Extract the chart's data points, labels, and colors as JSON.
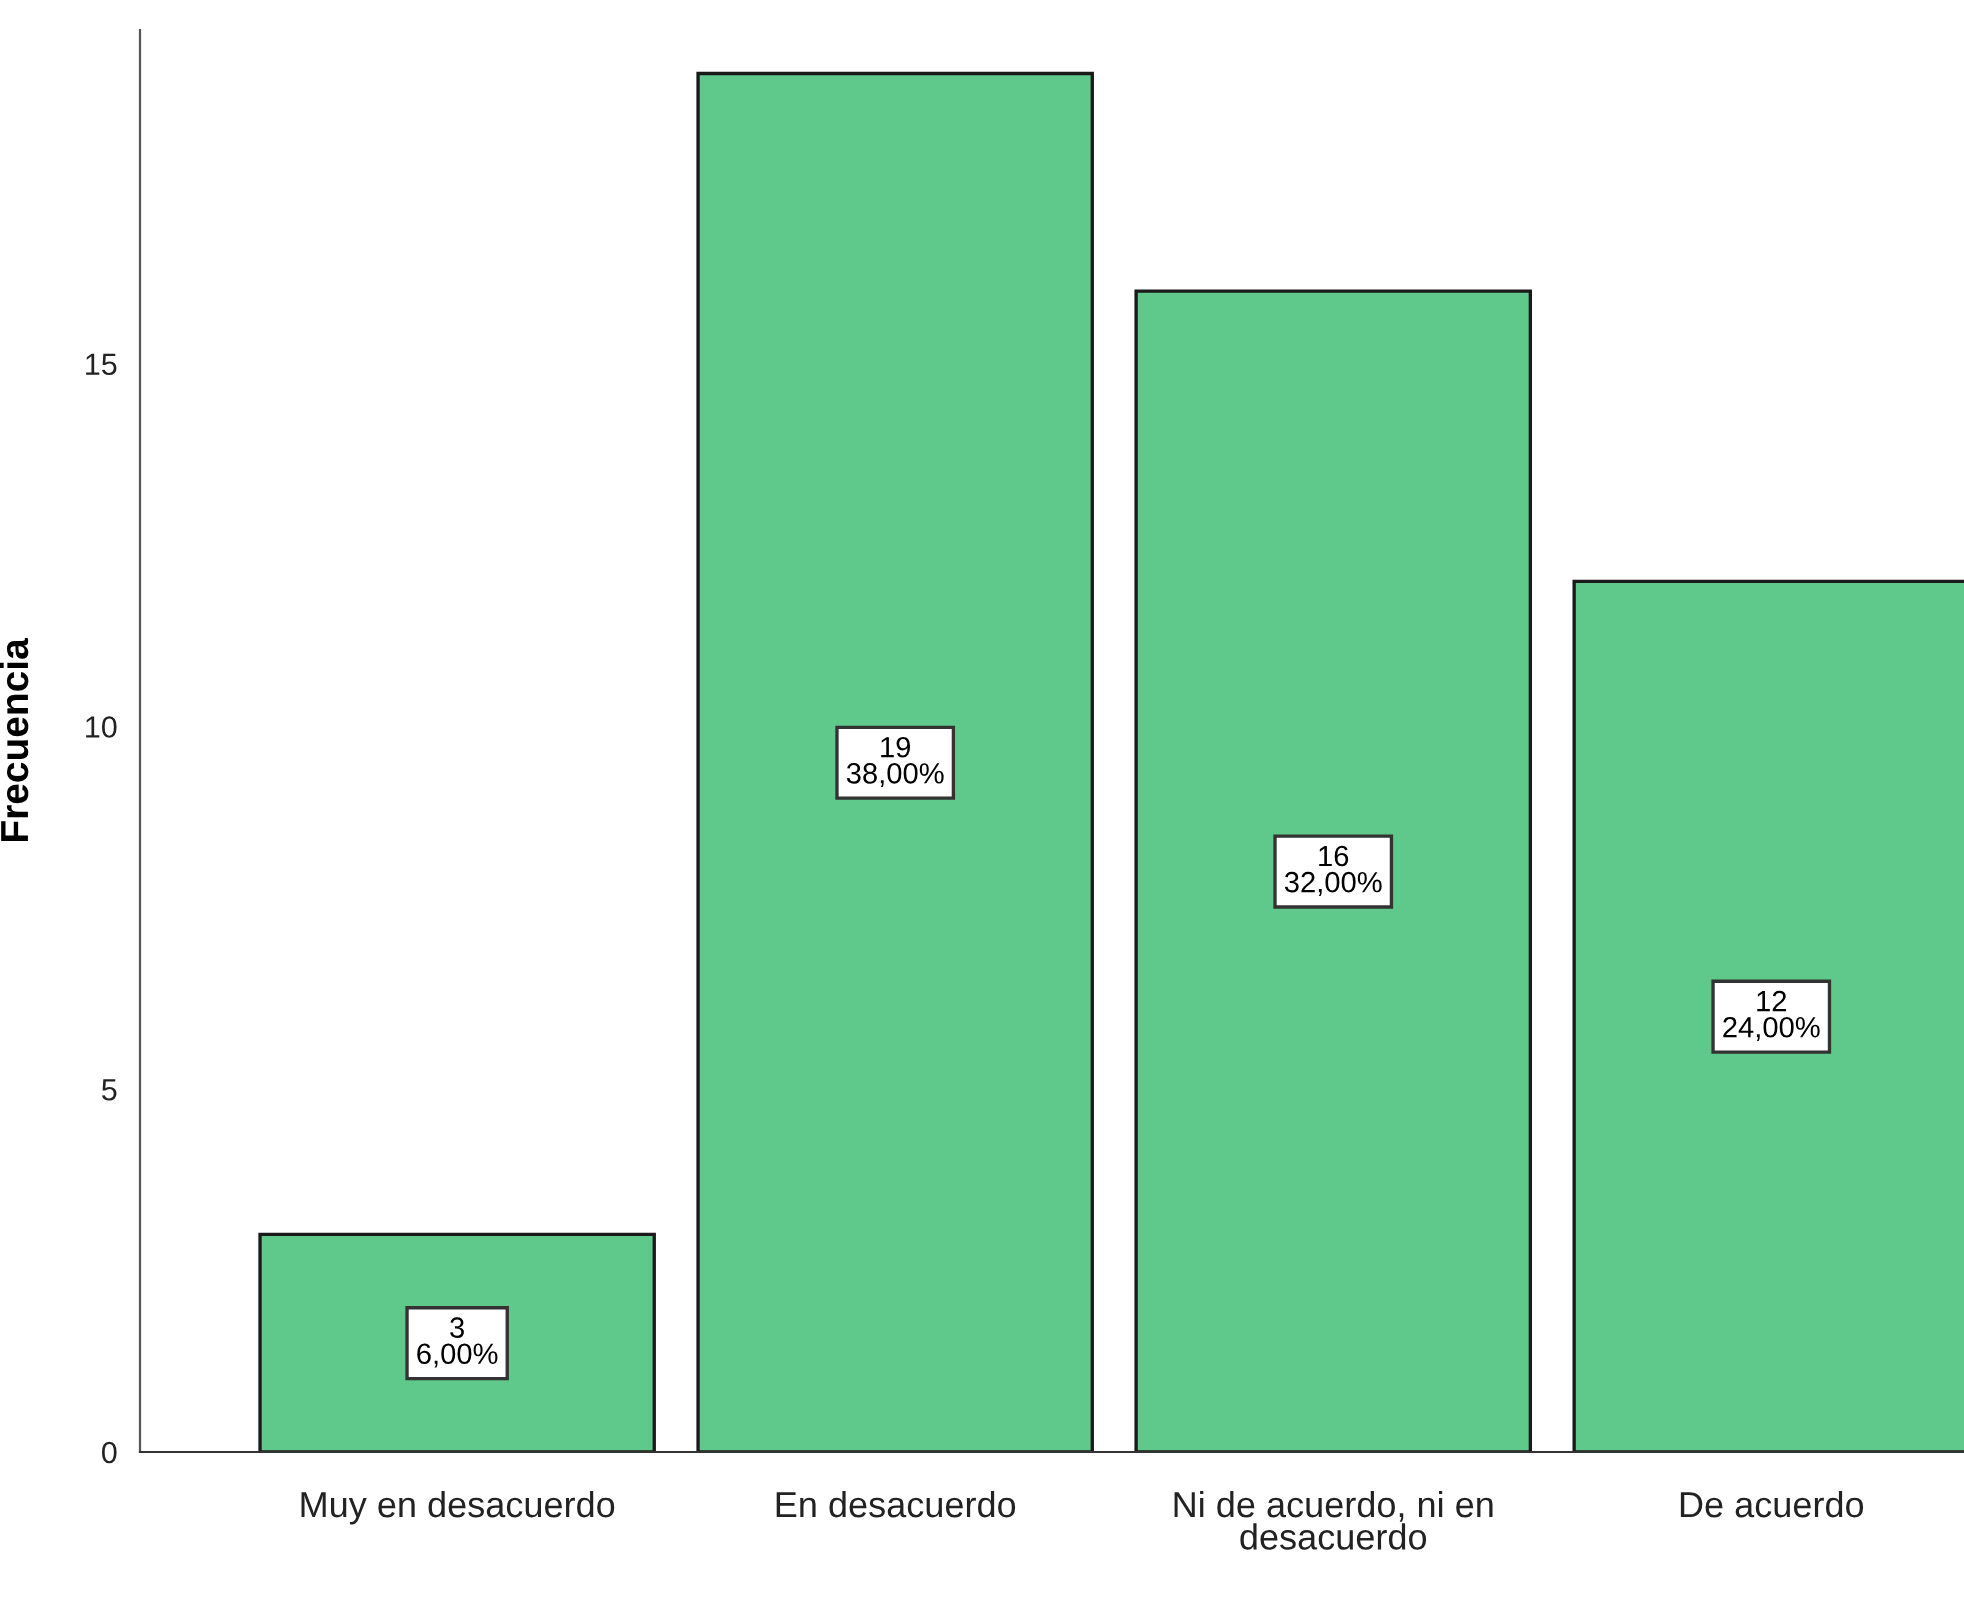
{
  "chart_data": {
    "type": "bar",
    "ylabel": "Frecuencia",
    "categories": [
      "Muy en desacuerdo",
      "En desacuerdo",
      "Ni de acuerdo, ni en\ndesacuerdo",
      "De acuerdo"
    ],
    "values": [
      3,
      19,
      16,
      12
    ],
    "color": "#5ec98b",
    "value_labels": [
      "3\n6,00%",
      "19\n38,00%",
      "16\n32,00%",
      "12\n24,00%"
    ],
    "ylim": [
      0,
      19.6
    ],
    "yticks": [
      0,
      5,
      10,
      15
    ],
    "grid": false,
    "legend": false
  }
}
